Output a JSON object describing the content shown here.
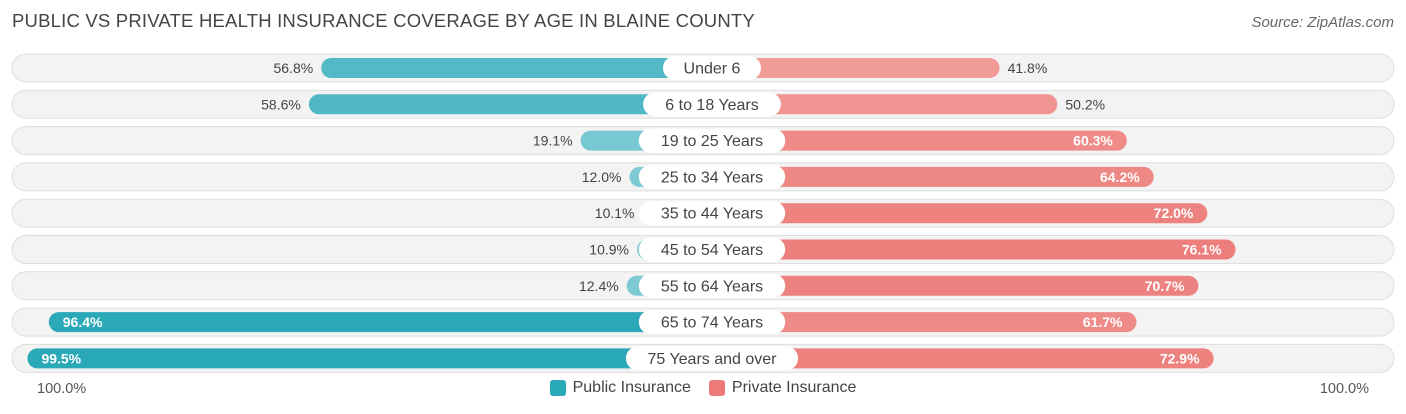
{
  "title": "PUBLIC VS PRIVATE HEALTH INSURANCE COVERAGE BY AGE IN BLAINE COUNTY",
  "source": "Source: ZipAtlas.com",
  "axis": {
    "left_label": "100.0%",
    "right_label": "100.0%"
  },
  "legend": [
    {
      "name": "Public Insurance",
      "color": "#29a8b8"
    },
    {
      "name": "Private Insurance",
      "color": "#ec7b78"
    }
  ],
  "chart_data": {
    "type": "bar",
    "orientation": "diverging-horizontal",
    "categories": [
      "Under 6",
      "6 to 18 Years",
      "19 to 25 Years",
      "25 to 34 Years",
      "35 to 44 Years",
      "45 to 54 Years",
      "55 to 64 Years",
      "65 to 74 Years",
      "75 Years and over"
    ],
    "series": [
      {
        "name": "Public Insurance",
        "values": [
          56.8,
          58.6,
          19.1,
          12.0,
          10.1,
          10.9,
          12.4,
          96.4,
          99.5
        ],
        "labels": [
          "56.8%",
          "58.6%",
          "19.1%",
          "12.0%",
          "10.1%",
          "10.9%",
          "12.4%",
          "96.4%",
          "99.5%"
        ]
      },
      {
        "name": "Private Insurance",
        "values": [
          41.8,
          50.2,
          60.3,
          64.2,
          72.0,
          76.1,
          70.7,
          61.7,
          72.9
        ],
        "labels": [
          "41.8%",
          "50.2%",
          "60.3%",
          "64.2%",
          "72.0%",
          "76.1%",
          "70.7%",
          "61.7%",
          "72.9%"
        ]
      }
    ],
    "xlim": [
      -100,
      100
    ],
    "legend_position": "bottom-center"
  }
}
